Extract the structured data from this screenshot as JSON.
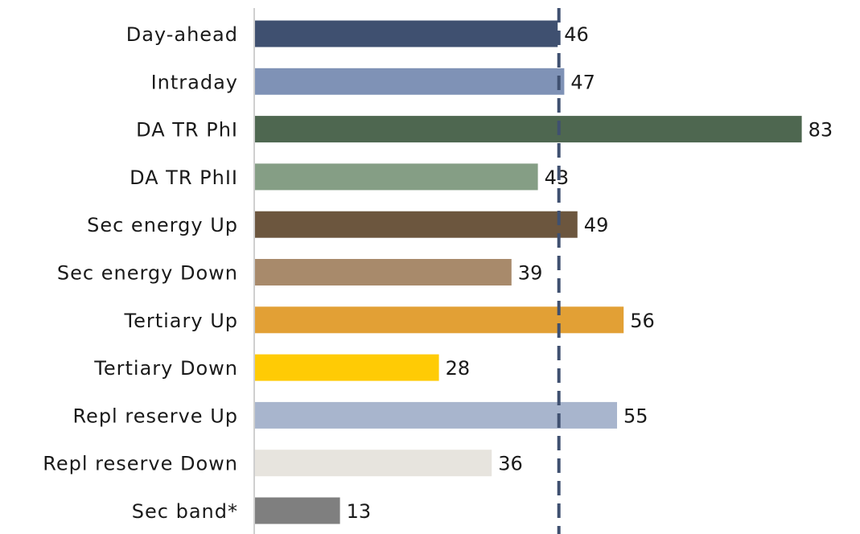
{
  "chart_data": {
    "type": "bar",
    "orientation": "horizontal",
    "categories": [
      "Day-ahead",
      "Intraday",
      "DA TR PhI",
      "DA TR PhII",
      "Sec energy Up",
      "Sec energy Down",
      "Tertiary Up",
      "Tertiary Down",
      "Repl reserve Up",
      "Repl reserve Down",
      "Sec band*"
    ],
    "values": [
      46,
      47,
      83,
      43,
      49,
      39,
      56,
      28,
      55,
      36,
      13
    ],
    "colors": [
      "#3f5070",
      "#7f92b6",
      "#4e6750",
      "#859e85",
      "#6c563e",
      "#a88a6b",
      "#e2a035",
      "#ffcb05",
      "#a8b5cd",
      "#e7e4de",
      "#7f7f7f"
    ],
    "reference_line": {
      "value": 46,
      "style": "dashed",
      "color": "#3f5070"
    },
    "title": "",
    "xlabel": "",
    "ylabel": "",
    "xlim": [
      0,
      85
    ],
    "grid": false,
    "legend": "none"
  }
}
